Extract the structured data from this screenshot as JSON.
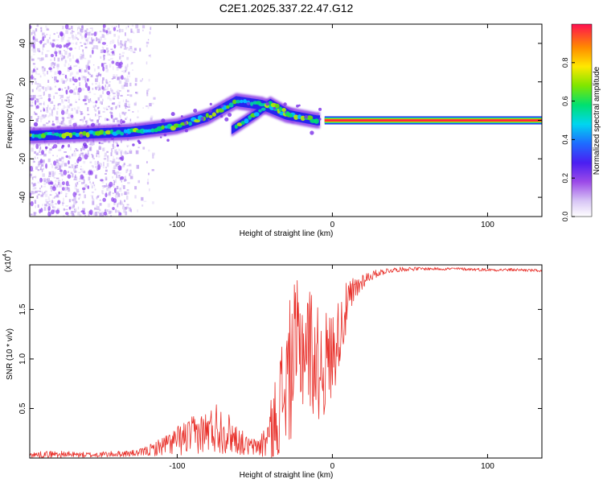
{
  "title": "C2E1.2025.337.22.47.G12",
  "chart_data": [
    {
      "type": "heatmap",
      "title": "C2E1.2025.337.22.47.G12",
      "xlabel": "Height of straight line (km)",
      "ylabel": "Frequency (Hz)",
      "xlim": [
        -195,
        135
      ],
      "ylim": [
        -50,
        50
      ],
      "xticks": [
        -100,
        0,
        100
      ],
      "yticks": [
        -40,
        -20,
        0,
        20,
        40
      ],
      "colorbar": {
        "label": "Normalized spectral amplitude",
        "ticks": [
          0.0,
          0.2,
          0.4,
          0.6,
          0.8
        ],
        "range": [
          0,
          1
        ],
        "colormap": [
          "#ffffff",
          "#c9b3f2",
          "#8a2be2",
          "#1e1eff",
          "#00c8ff",
          "#00e070",
          "#88ee00",
          "#ffee00",
          "#ff8800",
          "#ff1030"
        ]
      },
      "ridge_description": "frequency ridge rising from about -8 Hz at -195 km to about +10 Hz near -60 km, constant at 0 Hz beyond 10 km",
      "ridge_points": [
        {
          "x": -195,
          "y": -8
        },
        {
          "x": -160,
          "y": -7
        },
        {
          "x": -130,
          "y": -6
        },
        {
          "x": -100,
          "y": -3
        },
        {
          "x": -80,
          "y": 2
        },
        {
          "x": -62,
          "y": 10
        },
        {
          "x": -45,
          "y": 8
        },
        {
          "x": -30,
          "y": 3
        },
        {
          "x": -10,
          "y": 0
        },
        {
          "x": 10,
          "y": 0
        },
        {
          "x": 135,
          "y": 0
        }
      ],
      "side_branch": [
        {
          "x": -65,
          "y": -5
        },
        {
          "x": -48,
          "y": 4
        },
        {
          "x": -40,
          "y": 9
        },
        {
          "x": -25,
          "y": 2
        }
      ]
    },
    {
      "type": "line",
      "xlabel": "Height of straight line (km)",
      "ylabel": "SNR (10 * v/v)",
      "exponent_label": "(x10",
      "exponent": "4",
      "xlim": [
        -195,
        135
      ],
      "ylim": [
        0,
        19500
      ],
      "xticks": [
        -100,
        0,
        100
      ],
      "yticks": [
        5000,
        10000,
        15000
      ],
      "ytick_labels": [
        "0.5",
        "1.0",
        "1.5"
      ],
      "color": "#e8302a",
      "series": [
        {
          "name": "SNR",
          "x": [
            -195,
            -180,
            -160,
            -140,
            -125,
            -115,
            -105,
            -95,
            -88,
            -80,
            -74,
            -68,
            -62,
            -55,
            -50,
            -45,
            -40,
            -35,
            -30,
            -25,
            -20,
            -15,
            -10,
            -5,
            0,
            5,
            10,
            15,
            20,
            25,
            30,
            35,
            40,
            50,
            60,
            80,
            100,
            120,
            135
          ],
          "values": [
            300,
            400,
            300,
            400,
            500,
            900,
            1500,
            2000,
            2400,
            2700,
            3200,
            2600,
            2000,
            1200,
            1100,
            1400,
            2500,
            5000,
            7500,
            10000,
            11500,
            11500,
            9500,
            9500,
            10500,
            13000,
            15500,
            17000,
            18000,
            18400,
            18700,
            18900,
            19000,
            19100,
            19100,
            19100,
            19000,
            19000,
            18900
          ],
          "noise_amp": [
            300,
            350,
            300,
            300,
            350,
            700,
            1200,
            1800,
            2000,
            2200,
            2800,
            2200,
            1600,
            1000,
            900,
            1500,
            3000,
            5000,
            7000,
            7500,
            7000,
            6500,
            6000,
            5500,
            4500,
            3500,
            2500,
            1500,
            800,
            500,
            350,
            300,
            250,
            200,
            150,
            150,
            150,
            150,
            150
          ]
        }
      ]
    }
  ]
}
